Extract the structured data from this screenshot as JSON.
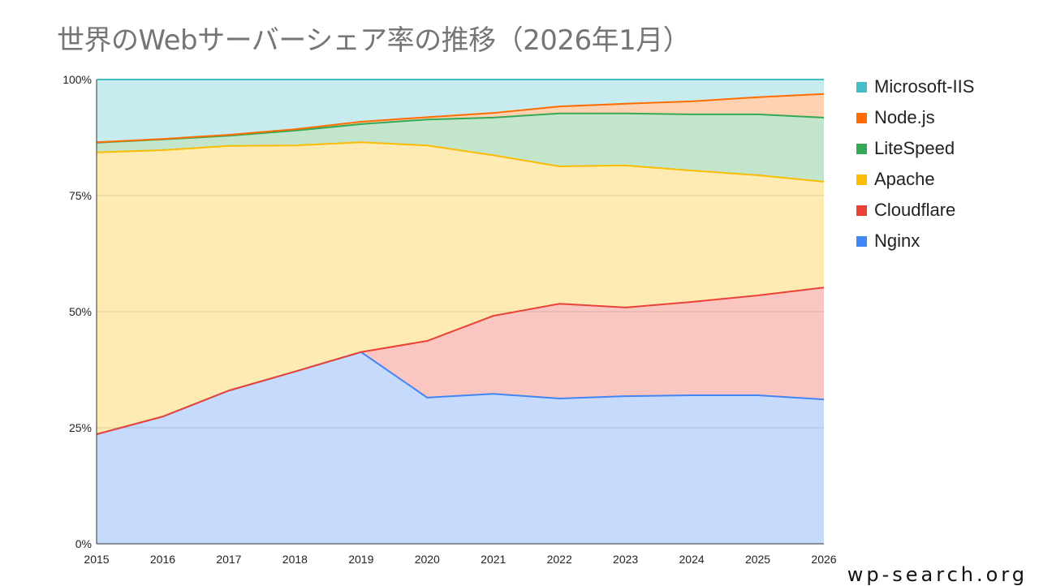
{
  "chart_data": {
    "type": "area",
    "stacked": true,
    "title": "世界のWebサーバーシェア率の推移（2026年1月）",
    "x": [
      2015,
      2016,
      2017,
      2018,
      2019,
      2020,
      2021,
      2022,
      2023,
      2024,
      2025,
      2026
    ],
    "ylim": [
      0,
      100
    ],
    "yticks": [
      "0%",
      "25%",
      "50%",
      "75%",
      "100%"
    ],
    "ytick_values": [
      0,
      25,
      50,
      75,
      100
    ],
    "grid": true,
    "legend_position": "right",
    "series": [
      {
        "name": "Nginx",
        "color": "#4285f4",
        "fill": "#c6dafb",
        "values": [
          23.6,
          27.4,
          33.0,
          37.1,
          41.3,
          31.5,
          32.3,
          31.3,
          31.8,
          32.0,
          32.0,
          31.1
        ]
      },
      {
        "name": "Cloudflare",
        "color": "#ea4335",
        "fill": "#f9c6c2",
        "values": [
          0,
          0,
          0,
          0,
          0,
          12.2,
          16.8,
          20.4,
          19.1,
          20.1,
          21.5,
          24.1
        ]
      },
      {
        "name": "Apache",
        "color": "#fbbc04",
        "fill": "#feeab3",
        "values": [
          60.7,
          57.4,
          52.7,
          48.7,
          45.2,
          42.1,
          34.6,
          29.6,
          30.6,
          28.3,
          25.9,
          22.8
        ]
      },
      {
        "name": "LiteSpeed",
        "color": "#34a853",
        "fill": "#c2e5cb",
        "values": [
          2.1,
          2.3,
          2.2,
          3.2,
          3.9,
          5.6,
          8.1,
          11.4,
          11.2,
          12.1,
          13.1,
          13.8
        ]
      },
      {
        "name": "Node.js",
        "color": "#ff6d01",
        "fill": "#ffd3b2",
        "values": [
          0.1,
          0.1,
          0.2,
          0.3,
          0.5,
          0.5,
          1.0,
          1.5,
          2.1,
          2.8,
          3.7,
          5.1
        ]
      },
      {
        "name": "Microsoft-IIS",
        "color": "#46bdc6",
        "fill": "#c7ebef",
        "values": [
          13.5,
          12.8,
          11.9,
          10.7,
          9.1,
          8.1,
          7.2,
          5.8,
          5.2,
          4.7,
          3.8,
          3.1
        ]
      }
    ]
  },
  "footer": "wp-search.org"
}
